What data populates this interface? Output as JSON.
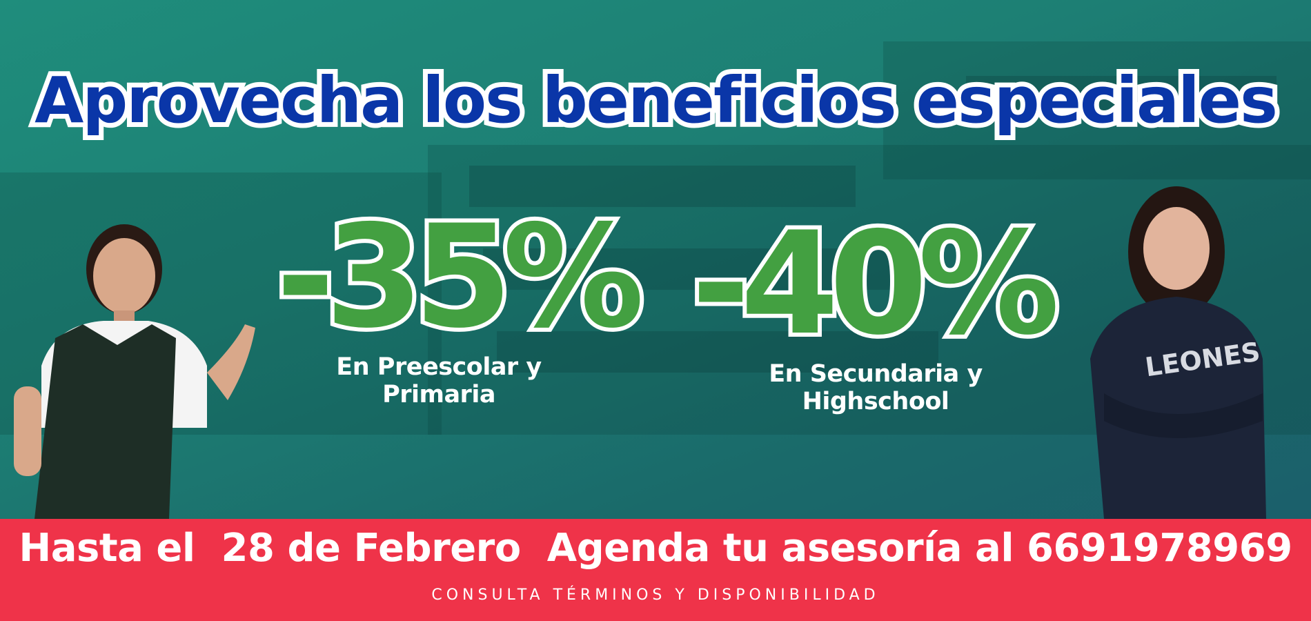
{
  "headline": "Aprovecha los beneficios especiales",
  "offers": [
    {
      "discount": "-35%",
      "description_line1": "En Preescolar y",
      "description_line2": "Primaria"
    },
    {
      "discount": "-40%",
      "description_line1": "En Secundaria y",
      "description_line2": "Highschool"
    }
  ],
  "footer": {
    "main": "Hasta el  28 de Febrero  Agenda tu asesoría al 6691978969",
    "note": "CONSULTA TÉRMINOS Y DISPONIBILIDAD"
  },
  "sweatshirt_text": "LEONES",
  "colors": {
    "background": "#1d7f74",
    "headline": "#0a36a8",
    "discount": "#43a041",
    "footer_bar": "#ef3349"
  }
}
